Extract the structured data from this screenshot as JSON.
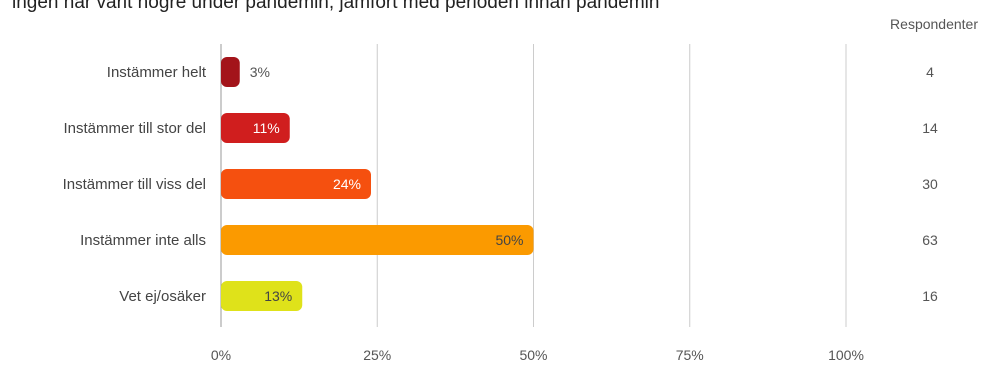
{
  "chart_data": {
    "type": "bar",
    "orientation": "horizontal",
    "title": "ingen har varit högre under pandemin, jämfört med perioden innan pandemin",
    "categories": [
      "Instämmer helt",
      "Instämmer till stor del",
      "Instämmer till viss del",
      "Instämmer inte alls",
      "Vet ej/osäker"
    ],
    "values": [
      3,
      11,
      24,
      50,
      13
    ],
    "value_labels": [
      "3%",
      "11%",
      "24%",
      "50%",
      "13%"
    ],
    "xlim": [
      0,
      100
    ],
    "ticks": [
      0,
      25,
      50,
      75,
      100
    ],
    "tick_labels": [
      "0%",
      "25%",
      "50%",
      "75%",
      "100%"
    ],
    "respondents_header": "Respondenter",
    "respondents": [
      "4",
      "14",
      "30",
      "63",
      "16"
    ],
    "colors": [
      "#a3141a",
      "#d01e1e",
      "#f5500f",
      "#fb9a00",
      "#dfe21a"
    ],
    "label_colors": [
      "#555555",
      "#ffffff",
      "#ffffff",
      "#444444",
      "#444444"
    ],
    "gridlines": true
  }
}
